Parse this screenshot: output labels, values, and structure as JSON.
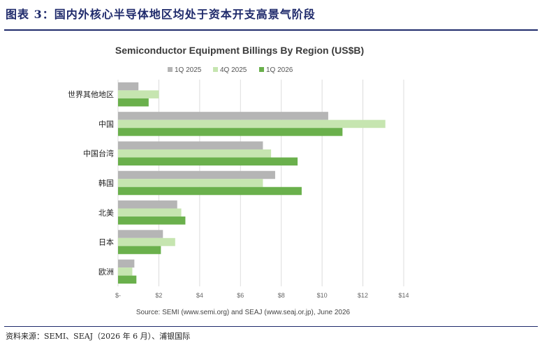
{
  "figure": {
    "label": "图表 3：国内外核心半导体地区均处于资本开支高景气阶段",
    "source": "资料来源：SEMI、SEAJ（2026 年 6 月）、浦银国际"
  },
  "chart_data": {
    "type": "bar",
    "orientation": "horizontal",
    "title": "Semiconductor Equipment Billings By Region (US$B)",
    "categories": [
      "世界其他地区",
      "中国",
      "中国台湾",
      "韩国",
      "北美",
      "日本",
      "欧洲"
    ],
    "series": [
      {
        "name": "1Q 2025",
        "color": "#b5b5b5",
        "values": [
          1.0,
          10.3,
          7.1,
          7.7,
          2.9,
          2.2,
          0.8
        ]
      },
      {
        "name": "4Q 2025",
        "color": "#c6e5b0",
        "values": [
          2.0,
          13.1,
          7.5,
          7.1,
          3.1,
          2.8,
          0.7
        ]
      },
      {
        "name": "1Q 2026",
        "color": "#6ab04c",
        "values": [
          1.5,
          11.0,
          8.8,
          9.0,
          3.3,
          2.1,
          0.9
        ]
      }
    ],
    "xlim": [
      0,
      14
    ],
    "xticks": [
      "$-",
      "$2",
      "$4",
      "$6",
      "$8",
      "$10",
      "$12",
      "$14"
    ],
    "grid": true,
    "legend_position": "top",
    "note": "Source: SEMI (www.semi.org) and SEAJ (www.seaj.or.jp), June 2026"
  }
}
